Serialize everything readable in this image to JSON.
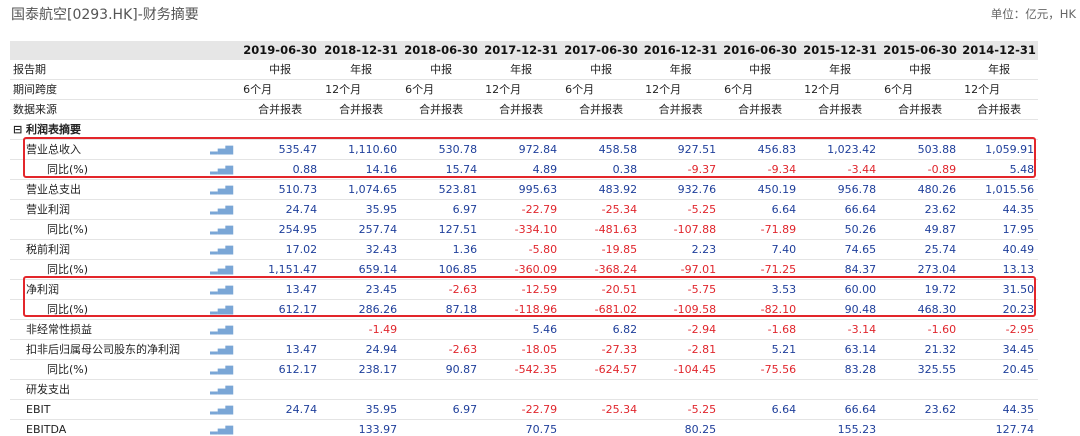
{
  "header": {
    "title": "国泰航空[0293.HK]-财务摘要",
    "unit": "单位：亿元，HK"
  },
  "columns": [
    "2019-06-30",
    "2018-12-31",
    "2018-06-30",
    "2017-12-31",
    "2017-06-30",
    "2016-12-31",
    "2016-06-30",
    "2015-12-31",
    "2015-06-30",
    "2014-12-31"
  ],
  "meta_rows": [
    {
      "label": "报告期",
      "align": "ctr",
      "values": [
        "中报",
        "年报",
        "中报",
        "年报",
        "中报",
        "年报",
        "中报",
        "年报",
        "中报",
        "年报"
      ]
    },
    {
      "label": "期间跨度",
      "align": "lft",
      "values": [
        "6个月",
        "12个月",
        "6个月",
        "12个月",
        "6个月",
        "12个月",
        "6个月",
        "12个月",
        "6个月",
        "12个月"
      ]
    },
    {
      "label": "数据来源",
      "align": "ctr",
      "values": [
        "合并报表",
        "合并报表",
        "合并报表",
        "合并报表",
        "合并报表",
        "合并报表",
        "合并报表",
        "合并报表",
        "合并报表",
        "合并报表"
      ]
    }
  ],
  "section": {
    "label": "⊟ 利润表摘要"
  },
  "chart_icon": "bar-chart-icon",
  "data_rows": [
    {
      "label": "营业总收入",
      "indent": 1,
      "values": [
        "535.47",
        "1,110.60",
        "530.78",
        "972.84",
        "458.58",
        "927.51",
        "456.83",
        "1,023.42",
        "503.88",
        "1,059.91"
      ]
    },
    {
      "label": "同比(%)",
      "indent": 2,
      "values": [
        "0.88",
        "14.16",
        "15.74",
        "4.89",
        "0.38",
        "-9.37",
        "-9.34",
        "-3.44",
        "-0.89",
        "5.48"
      ]
    },
    {
      "label": "营业总支出",
      "indent": 1,
      "values": [
        "510.73",
        "1,074.65",
        "523.81",
        "995.63",
        "483.92",
        "932.76",
        "450.19",
        "956.78",
        "480.26",
        "1,015.56"
      ]
    },
    {
      "label": "营业利润",
      "indent": 1,
      "values": [
        "24.74",
        "35.95",
        "6.97",
        "-22.79",
        "-25.34",
        "-5.25",
        "6.64",
        "66.64",
        "23.62",
        "44.35"
      ]
    },
    {
      "label": "同比(%)",
      "indent": 2,
      "values": [
        "254.95",
        "257.74",
        "127.51",
        "-334.10",
        "-481.63",
        "-107.88",
        "-71.89",
        "50.26",
        "49.87",
        "17.95"
      ]
    },
    {
      "label": "税前利润",
      "indent": 1,
      "values": [
        "17.02",
        "32.43",
        "1.36",
        "-5.80",
        "-19.85",
        "2.23",
        "7.40",
        "74.65",
        "25.74",
        "40.49"
      ]
    },
    {
      "label": "同比(%)",
      "indent": 2,
      "values": [
        "1,151.47",
        "659.14",
        "106.85",
        "-360.09",
        "-368.24",
        "-97.01",
        "-71.25",
        "84.37",
        "273.04",
        "13.13"
      ]
    },
    {
      "label": "净利润",
      "indent": 1,
      "values": [
        "13.47",
        "23.45",
        "-2.63",
        "-12.59",
        "-20.51",
        "-5.75",
        "3.53",
        "60.00",
        "19.72",
        "31.50"
      ]
    },
    {
      "label": "同比(%)",
      "indent": 2,
      "values": [
        "612.17",
        "286.26",
        "87.18",
        "-118.96",
        "-681.02",
        "-109.58",
        "-82.10",
        "90.48",
        "468.30",
        "20.23"
      ]
    },
    {
      "label": "非经常性损益",
      "indent": 1,
      "values": [
        "",
        "-1.49",
        "",
        "5.46",
        "6.82",
        "-2.94",
        "-1.68",
        "-3.14",
        "-1.60",
        "-2.95"
      ]
    },
    {
      "label": "扣非后归属母公司股东的净利润",
      "indent": 1,
      "values": [
        "13.47",
        "24.94",
        "-2.63",
        "-18.05",
        "-27.33",
        "-2.81",
        "5.21",
        "63.14",
        "21.32",
        "34.45"
      ]
    },
    {
      "label": "同比(%)",
      "indent": 2,
      "values": [
        "612.17",
        "238.17",
        "90.87",
        "-542.35",
        "-624.57",
        "-104.45",
        "-75.56",
        "83.28",
        "325.55",
        "20.45"
      ]
    },
    {
      "label": "研发支出",
      "indent": 1,
      "values": [
        "",
        "",
        "",
        "",
        "",
        "",
        "",
        "",
        "",
        ""
      ]
    },
    {
      "label": "EBIT",
      "indent": 1,
      "values": [
        "24.74",
        "35.95",
        "6.97",
        "-22.79",
        "-25.34",
        "-5.25",
        "6.64",
        "66.64",
        "23.62",
        "44.35"
      ]
    },
    {
      "label": "EBITDA",
      "indent": 1,
      "values": [
        "",
        "133.97",
        "",
        "70.75",
        "",
        "80.25",
        "",
        "155.23",
        "",
        "127.74"
      ]
    }
  ],
  "highlight_color": "#e3262b"
}
